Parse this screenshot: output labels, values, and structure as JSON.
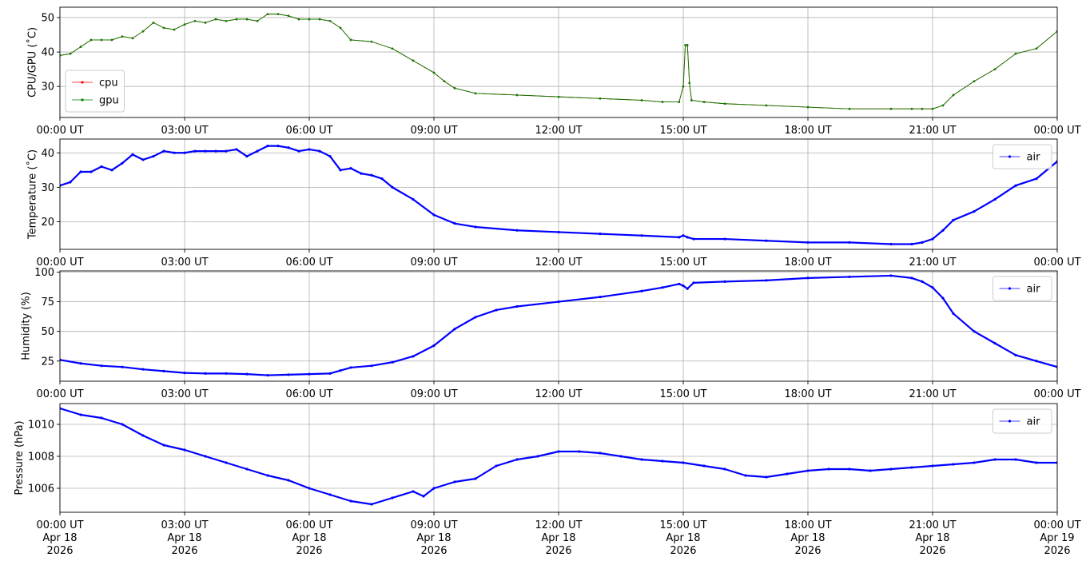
{
  "chart_data": [
    {
      "type": "line",
      "ylabel": "CPU/GPU (˚C)",
      "ylim": [
        21,
        53
      ],
      "yticks": [
        30,
        40,
        50
      ],
      "xlim": [
        0,
        24
      ],
      "grid": true,
      "legend_placement": "lower-left",
      "x_tick_labels": [
        "00:00 UT",
        "03:00 UT",
        "06:00 UT",
        "09:00 UT",
        "12:00 UT",
        "15:00 UT",
        "18:00 UT",
        "21:00 UT",
        "00:00 UT"
      ],
      "series": [
        {
          "name": "cpu",
          "color": "#ff0000",
          "x": [
            0,
            0.25,
            0.5,
            0.75,
            1,
            1.25,
            1.5,
            1.75,
            2,
            2.25,
            2.5,
            2.75,
            3,
            3.25,
            3.5,
            3.75,
            4,
            4.25,
            4.5,
            4.75,
            5,
            5.25,
            5.5,
            5.75,
            6,
            6.25,
            6.5,
            6.75,
            7,
            7.5,
            8,
            8.5,
            9,
            9.25,
            9.5,
            10,
            11,
            12,
            13,
            14,
            14.5,
            14.9,
            15,
            15.05,
            15.1,
            15.15,
            15.2,
            15.5,
            16,
            17,
            18,
            19,
            20,
            20.5,
            20.75,
            21,
            21.25,
            21.5,
            22,
            22.5,
            23,
            23.5,
            24
          ],
          "y": [
            39,
            39.5,
            41.5,
            43.5,
            43.5,
            43.5,
            44.5,
            44,
            46,
            48.5,
            47,
            46.5,
            48,
            49,
            48.5,
            49.5,
            49,
            49.5,
            49.5,
            49,
            51,
            51,
            50.5,
            49.5,
            49.5,
            49.5,
            49,
            47,
            43.5,
            43,
            41,
            37.5,
            34,
            31.5,
            29.5,
            28,
            27.5,
            27,
            26.5,
            26,
            25.5,
            25.5,
            30,
            42,
            42,
            31,
            26,
            25.5,
            25,
            24.5,
            24,
            23.5,
            23.5,
            23.5,
            23.5,
            23.5,
            24.5,
            27.5,
            31.5,
            35,
            39.5,
            41,
            46
          ]
        },
        {
          "name": "gpu",
          "color": "#008000",
          "x": [
            0,
            0.25,
            0.5,
            0.75,
            1,
            1.25,
            1.5,
            1.75,
            2,
            2.25,
            2.5,
            2.75,
            3,
            3.25,
            3.5,
            3.75,
            4,
            4.25,
            4.5,
            4.75,
            5,
            5.25,
            5.5,
            5.75,
            6,
            6.25,
            6.5,
            6.75,
            7,
            7.5,
            8,
            8.5,
            9,
            9.25,
            9.5,
            10,
            11,
            12,
            13,
            14,
            14.5,
            14.9,
            15,
            15.05,
            15.1,
            15.15,
            15.2,
            15.5,
            16,
            17,
            18,
            19,
            20,
            20.5,
            20.75,
            21,
            21.25,
            21.5,
            22,
            22.5,
            23,
            23.5,
            24
          ],
          "y": [
            39,
            39.5,
            41.5,
            43.5,
            43.5,
            43.5,
            44.5,
            44,
            46,
            48.5,
            47,
            46.5,
            48,
            49,
            48.5,
            49.5,
            49,
            49.5,
            49.5,
            49,
            51,
            51,
            50.5,
            49.5,
            49.5,
            49.5,
            49,
            47,
            43.5,
            43,
            41,
            37.5,
            34,
            31.5,
            29.5,
            28,
            27.5,
            27,
            26.5,
            26,
            25.5,
            25.5,
            30,
            42,
            42,
            31,
            26,
            25.5,
            25,
            24.5,
            24,
            23.5,
            23.5,
            23.5,
            23.5,
            23.5,
            24.5,
            27.5,
            31.5,
            35,
            39.5,
            41,
            46
          ]
        }
      ]
    },
    {
      "type": "line",
      "ylabel": "Temperature (˚C)",
      "ylim": [
        12,
        44
      ],
      "yticks": [
        20,
        30,
        40
      ],
      "xlim": [
        0,
        24
      ],
      "grid": true,
      "legend_placement": "upper-right",
      "x_tick_labels": [
        "00:00 UT",
        "03:00 UT",
        "06:00 UT",
        "09:00 UT",
        "12:00 UT",
        "15:00 UT",
        "18:00 UT",
        "21:00 UT",
        "00:00 UT"
      ],
      "series": [
        {
          "name": "air",
          "color": "#0000ff",
          "x": [
            0,
            0.25,
            0.5,
            0.75,
            1,
            1.25,
            1.5,
            1.75,
            2,
            2.25,
            2.5,
            2.75,
            3,
            3.25,
            3.5,
            3.75,
            4,
            4.25,
            4.5,
            4.75,
            5,
            5.25,
            5.5,
            5.75,
            6,
            6.25,
            6.5,
            6.75,
            7,
            7.25,
            7.5,
            7.75,
            8,
            8.5,
            9,
            9.5,
            10,
            11,
            12,
            13,
            14,
            14.9,
            15,
            15.1,
            15.25,
            16,
            17,
            18,
            19,
            20,
            20.5,
            20.75,
            21,
            21.25,
            21.5,
            22,
            22.5,
            23,
            23.5,
            24
          ],
          "y": [
            30.5,
            31.5,
            34.5,
            34.5,
            36,
            35,
            37,
            39.5,
            38,
            39,
            40.5,
            40,
            40,
            40.5,
            40.5,
            40.5,
            40.5,
            41,
            39,
            40.5,
            42,
            42,
            41.5,
            40.5,
            41,
            40.5,
            39,
            35,
            35.5,
            34,
            33.5,
            32.5,
            30,
            26.5,
            22,
            19.5,
            18.5,
            17.5,
            17,
            16.5,
            16,
            15.5,
            16,
            15.5,
            15,
            15,
            14.5,
            14,
            14,
            13.5,
            13.5,
            14,
            15,
            17.5,
            20.5,
            23,
            26.5,
            30.5,
            32.5,
            37.5
          ]
        }
      ]
    },
    {
      "type": "line",
      "ylabel": "Humidity (%)",
      "ylim": [
        8,
        101
      ],
      "yticks": [
        25,
        50,
        75,
        100
      ],
      "xlim": [
        0,
        24
      ],
      "grid": true,
      "legend_placement": "upper-right",
      "x_tick_labels": [
        "00:00 UT",
        "03:00 UT",
        "06:00 UT",
        "09:00 UT",
        "12:00 UT",
        "15:00 UT",
        "18:00 UT",
        "21:00 UT",
        "00:00 UT"
      ],
      "series": [
        {
          "name": "air",
          "color": "#0000ff",
          "x": [
            0,
            0.5,
            1,
            1.5,
            2,
            2.5,
            3,
            3.5,
            4,
            4.5,
            5,
            5.5,
            6,
            6.5,
            6.75,
            7,
            7.5,
            8,
            8.5,
            9,
            9.5,
            10,
            10.5,
            11,
            12,
            13,
            14,
            14.5,
            14.9,
            15,
            15.1,
            15.25,
            16,
            17,
            18,
            19,
            20,
            20.5,
            20.75,
            21,
            21.25,
            21.5,
            22,
            22.5,
            23,
            23.5,
            24
          ],
          "y": [
            26,
            23,
            21,
            20,
            18,
            16.5,
            15,
            14.5,
            14.5,
            14,
            13,
            13.5,
            14,
            14.5,
            17,
            19.5,
            21,
            24,
            29,
            38,
            52,
            62,
            68,
            71,
            75,
            79,
            84,
            87,
            90,
            88.5,
            86,
            91,
            92,
            93,
            95,
            96,
            97,
            95,
            92,
            87,
            78,
            65,
            50,
            40,
            30,
            25,
            20
          ]
        }
      ]
    },
    {
      "type": "line",
      "ylabel": "Pressure (hPa)",
      "ylim": [
        1004.5,
        1011.3
      ],
      "yticks": [
        1006,
        1008,
        1010
      ],
      "xlim": [
        0,
        24
      ],
      "grid": true,
      "legend_placement": "upper-right",
      "x_tick_labels": [
        "00:00 UT",
        "03:00 UT",
        "06:00 UT",
        "09:00 UT",
        "12:00 UT",
        "15:00 UT",
        "18:00 UT",
        "21:00 UT",
        "00:00 UT"
      ],
      "x_tick_sublabels": [
        "Apr 18",
        "Apr 18",
        "Apr 18",
        "Apr 18",
        "Apr 18",
        "Apr 18",
        "Apr 18",
        "Apr 18",
        "Apr 19"
      ],
      "x_tick_years": [
        "2026",
        "2026",
        "2026",
        "2026",
        "2026",
        "2026",
        "2026",
        "2026",
        "2026"
      ],
      "series": [
        {
          "name": "air",
          "color": "#0000ff",
          "x": [
            0,
            0.5,
            1,
            1.5,
            2,
            2.5,
            3,
            3.5,
            4,
            4.5,
            5,
            5.5,
            6,
            6.5,
            7,
            7.5,
            8,
            8.5,
            8.75,
            9,
            9.5,
            10,
            10.5,
            11,
            11.5,
            12,
            12.5,
            13,
            13.5,
            14,
            14.5,
            15,
            15.5,
            16,
            16.5,
            17,
            17.5,
            18,
            18.5,
            19,
            19.5,
            20,
            20.5,
            21,
            21.5,
            22,
            22.5,
            23,
            23.5,
            24
          ],
          "y": [
            1011,
            1010.6,
            1010.4,
            1010,
            1009.3,
            1008.7,
            1008.4,
            1008,
            1007.6,
            1007.2,
            1006.8,
            1006.5,
            1006,
            1005.6,
            1005.2,
            1005,
            1005.4,
            1005.8,
            1005.5,
            1006,
            1006.4,
            1006.6,
            1007.4,
            1007.8,
            1008,
            1008.3,
            1008.3,
            1008.2,
            1008,
            1007.8,
            1007.7,
            1007.6,
            1007.4,
            1007.2,
            1006.8,
            1006.7,
            1006.9,
            1007.1,
            1007.2,
            1007.2,
            1007.1,
            1007.2,
            1007.3,
            1007.4,
            1007.5,
            1007.6,
            1007.8,
            1007.8,
            1007.6,
            1007.6
          ]
        }
      ]
    }
  ]
}
